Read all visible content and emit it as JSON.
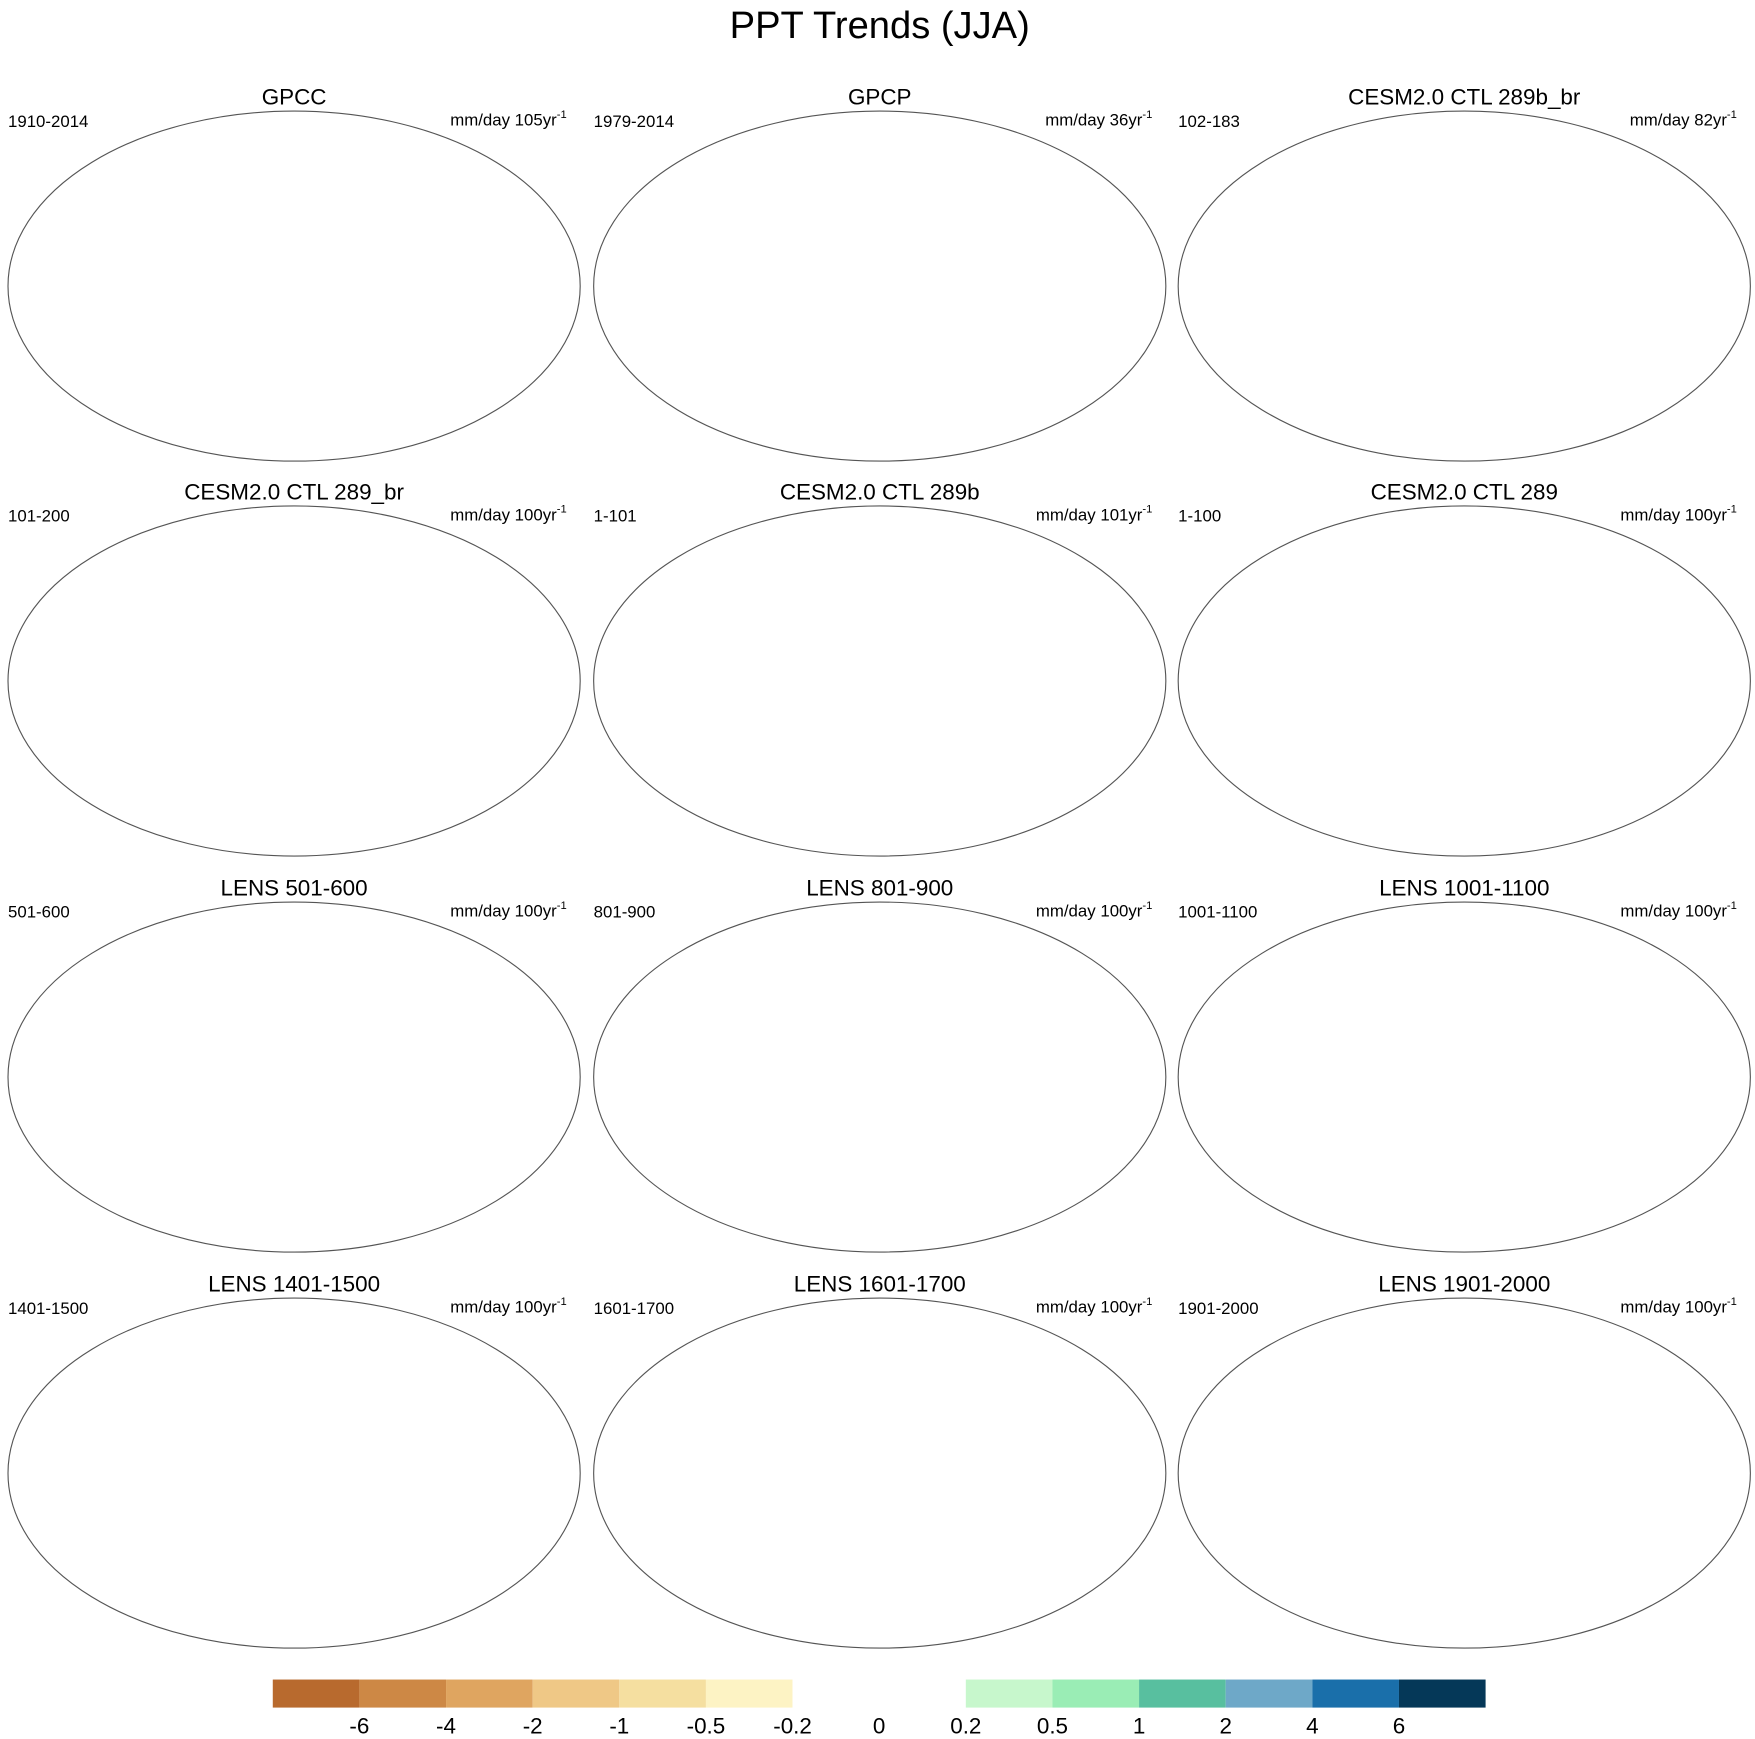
{
  "title": "PPT Trends (JJA)",
  "panels": [
    {
      "title": "GPCC",
      "period": "1910-2014",
      "units": "mm/day 105yr",
      "units_exp": "-1"
    },
    {
      "title": "GPCP",
      "period": "1979-2014",
      "units": "mm/day 36yr",
      "units_exp": "-1"
    },
    {
      "title": "CESM2.0 CTL 289b_br",
      "period": "102-183",
      "units": "mm/day 82yr",
      "units_exp": "-1"
    },
    {
      "title": "CESM2.0 CTL 289_br",
      "period": "101-200",
      "units": "mm/day 100yr",
      "units_exp": "-1"
    },
    {
      "title": "CESM2.0 CTL 289b",
      "period": "1-101",
      "units": "mm/day 101yr",
      "units_exp": "-1"
    },
    {
      "title": "CESM2.0 CTL 289",
      "period": "1-100",
      "units": "mm/day 100yr",
      "units_exp": "-1"
    },
    {
      "title": "LENS 501-600",
      "period": "501-600",
      "units": "mm/day 100yr",
      "units_exp": "-1"
    },
    {
      "title": "LENS 801-900",
      "period": "801-900",
      "units": "mm/day 100yr",
      "units_exp": "-1"
    },
    {
      "title": "LENS 1001-1100",
      "period": "1001-1100",
      "units": "mm/day 100yr",
      "units_exp": "-1"
    },
    {
      "title": "LENS 1401-1500",
      "period": "1401-1500",
      "units": "mm/day 100yr",
      "units_exp": "-1"
    },
    {
      "title": "LENS 1601-1700",
      "period": "1601-1700",
      "units": "mm/day 100yr",
      "units_exp": "-1"
    },
    {
      "title": "LENS 1901-2000",
      "period": "1901-2000",
      "units": "mm/day 100yr",
      "units_exp": "-1"
    }
  ],
  "colorbar": {
    "colors": [
      "#b86a2e",
      "#cd8845",
      "#dfa560",
      "#efc886",
      "#f5dfa0",
      "#fdf3c4",
      "#ffffff",
      "#ffffff",
      "#c7f7cc",
      "#9aedb5",
      "#58bf9f",
      "#6ea8c8",
      "#1a6faa",
      "#053858"
    ],
    "ticks": [
      -6,
      -4,
      -2,
      -1,
      -0.5,
      -0.2,
      0,
      0.2,
      0.5,
      1,
      2,
      4,
      6
    ]
  }
}
